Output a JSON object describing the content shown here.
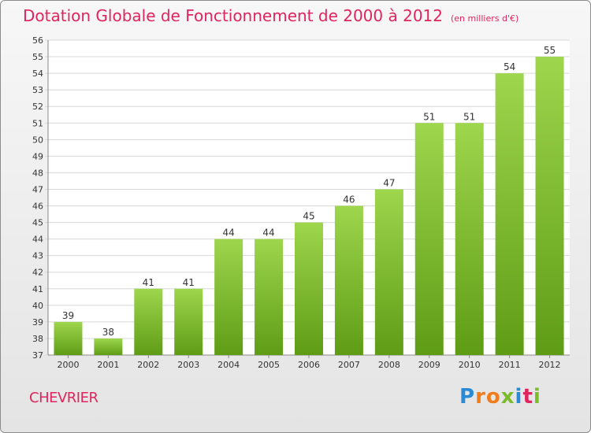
{
  "header": {
    "title": "Dotation Globale de Fonctionnement de 2000 à 2012",
    "unit": "(en milliers d'€)"
  },
  "footer": {
    "town": "CHEVRIER",
    "logo": [
      "P",
      "r",
      "o",
      "x",
      "i",
      "t",
      "i"
    ]
  },
  "colors": {
    "title": "#e0245e",
    "bar_top": "#9ed64d",
    "bar_bottom": "#5f9c16",
    "logo_blue": "#2a8ad6",
    "logo_orange": "#f07d1a",
    "logo_green": "#7cbb2a"
  },
  "chart_data": {
    "type": "bar",
    "categories": [
      "2000",
      "2001",
      "2002",
      "2003",
      "2004",
      "2005",
      "2006",
      "2007",
      "2008",
      "2009",
      "2010",
      "2011",
      "2012"
    ],
    "values": [
      39,
      38,
      41,
      41,
      44,
      44,
      45,
      46,
      47,
      51,
      51,
      54,
      55
    ],
    "ylim": [
      37,
      56
    ],
    "yticks": [
      37,
      38,
      39,
      40,
      41,
      42,
      43,
      44,
      45,
      46,
      47,
      48,
      49,
      50,
      51,
      52,
      53,
      54,
      55,
      56
    ],
    "grid": true,
    "data_labels": true
  }
}
